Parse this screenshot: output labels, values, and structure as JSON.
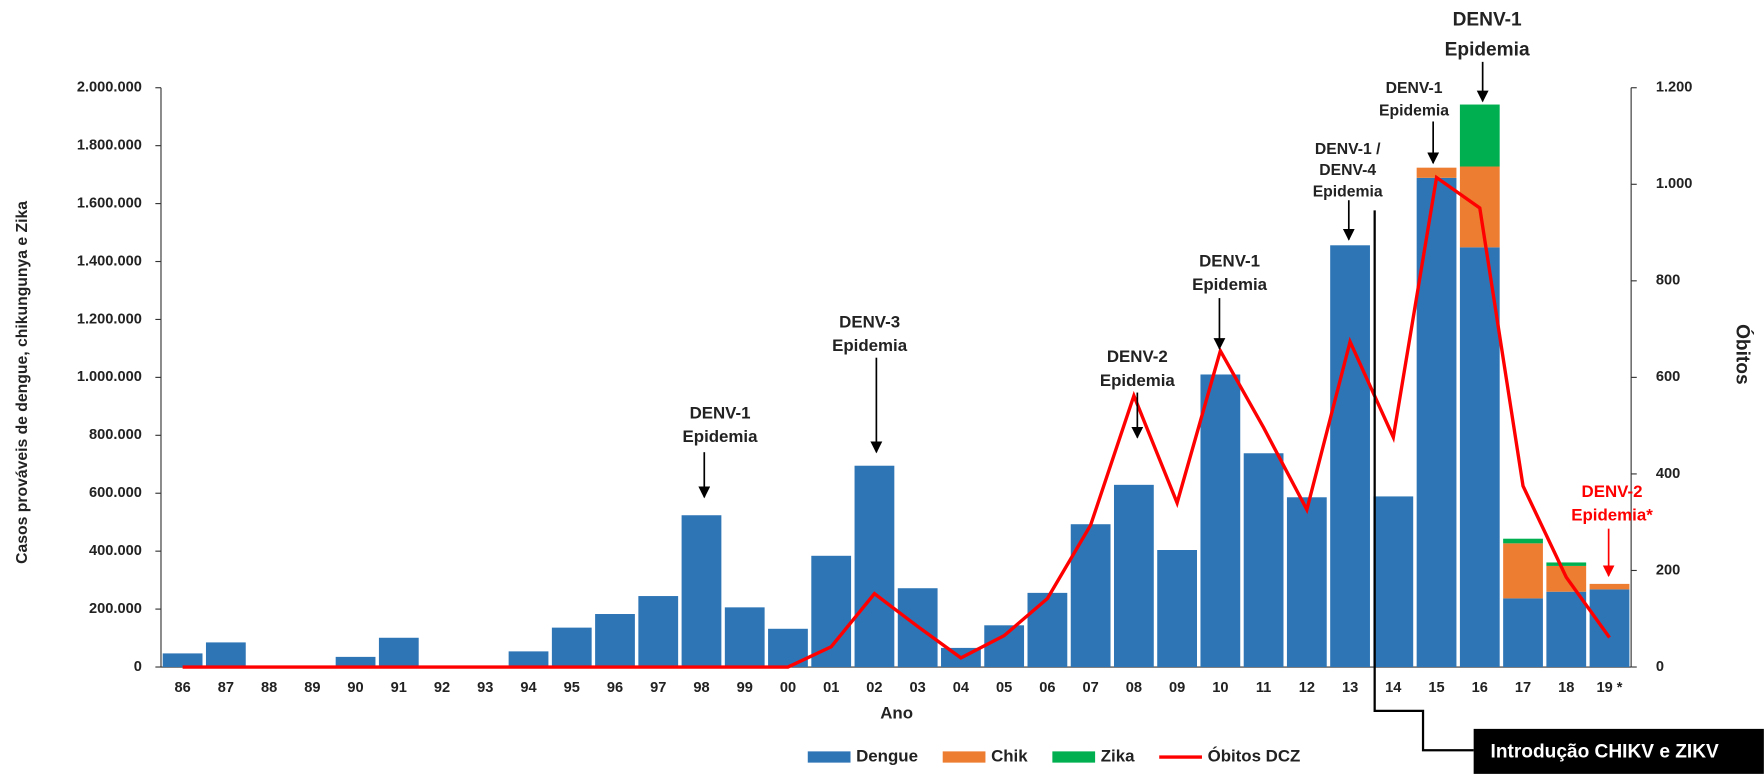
{
  "chart_data": {
    "type": "bar",
    "stacked": true,
    "categories": [
      "86",
      "87",
      "88",
      "89",
      "90",
      "91",
      "92",
      "93",
      "94",
      "95",
      "96",
      "97",
      "98",
      "99",
      "00",
      "01",
      "02",
      "03",
      "04",
      "05",
      "06",
      "07",
      "08",
      "09",
      "10",
      "11",
      "12",
      "13",
      "14",
      "15",
      "16",
      "17",
      "18",
      "19 *"
    ],
    "series": [
      {
        "name": "Dengue",
        "color": "#2e75b6",
        "values": [
          47000,
          85000,
          0,
          0,
          35000,
          101000,
          0,
          0,
          54000,
          136000,
          183000,
          245000,
          524000,
          206000,
          132000,
          384000,
          695000,
          272000,
          66000,
          144000,
          256000,
          493000,
          629000,
          404000,
          1010000,
          738000,
          586000,
          1456000,
          589000,
          1689000,
          1449000,
          237000,
          260000,
          268000
        ]
      },
      {
        "name": "Chik",
        "color": "#ed7d31",
        "values": [
          null,
          null,
          null,
          null,
          null,
          null,
          null,
          null,
          null,
          null,
          null,
          null,
          null,
          null,
          null,
          null,
          null,
          null,
          null,
          null,
          null,
          null,
          null,
          null,
          null,
          null,
          null,
          null,
          null,
          35000,
          279000,
          190000,
          89000,
          19000
        ]
      },
      {
        "name": "Zika",
        "color": "#00b050",
        "values": [
          null,
          null,
          null,
          null,
          null,
          null,
          null,
          null,
          null,
          null,
          null,
          null,
          null,
          null,
          null,
          null,
          null,
          null,
          null,
          null,
          null,
          null,
          null,
          null,
          null,
          null,
          null,
          null,
          null,
          null,
          214000,
          16000,
          12000,
          0
        ]
      },
      {
        "name": "Óbitos DCZ",
        "color": "#ff0000",
        "type": "line",
        "axis": "y2",
        "values": [
          0,
          0,
          0,
          0,
          0,
          0,
          0,
          0,
          0,
          0,
          0,
          0,
          0,
          0,
          0,
          42,
          152,
          84,
          19,
          65,
          142,
          294,
          562,
          340,
          655,
          496,
          326,
          674,
          476,
          1014,
          951,
          375,
          186,
          61
        ]
      }
    ],
    "ylim": [
      0,
      2000000
    ],
    "yticks": [
      0,
      {
        "value": 200000,
        "label": "200.000"
      },
      {
        "value": 400000,
        "label": "400.000"
      },
      {
        "value": 600000,
        "label": "600.000"
      },
      {
        "value": 800000,
        "label": "800.000"
      },
      {
        "value": 1000000,
        "label": "1.000.000"
      },
      {
        "value": 1200000,
        "label": "1.200.000"
      },
      {
        "value": 1400000,
        "label": "1.400.000"
      },
      {
        "value": 1600000,
        "label": "1.600.000"
      },
      {
        "value": 1800000,
        "label": "1.800.000"
      },
      {
        "value": 2000000,
        "label": "2.000.000"
      }
    ],
    "y2lim": [
      0,
      1200
    ],
    "y2ticks": [
      0,
      200,
      400,
      600,
      800,
      {
        "value": 1000,
        "label": "1.000"
      },
      {
        "value": 1200,
        "label": "1.200"
      }
    ],
    "ylabel": "Casos prováveis de dengue, chikungunya e Zika",
    "y2label": "Óbitos",
    "xlabel": "Ano",
    "annotations": [
      {
        "lines": [
          "DENV-1",
          "Epidemia"
        ]
      },
      {
        "lines": [
          "DENV-3",
          "Epidemia"
        ]
      },
      {
        "lines": [
          "DENV-2",
          "Epidemia"
        ]
      },
      {
        "lines": [
          "DENV-1",
          "Epidemia"
        ]
      },
      {
        "lines": [
          "DENV-1 /",
          "DENV-4",
          "Epidemia"
        ]
      },
      {
        "lines": [
          "DENV-1",
          "Epidemia"
        ]
      },
      {
        "lines": [
          "DENV-1",
          "Epidemia"
        ]
      },
      {
        "lines": [
          "DENV-2",
          "Epidemia*"
        ],
        "color": "#ff0000"
      }
    ],
    "callout": "Introdução CHIKV e ZIKV"
  }
}
